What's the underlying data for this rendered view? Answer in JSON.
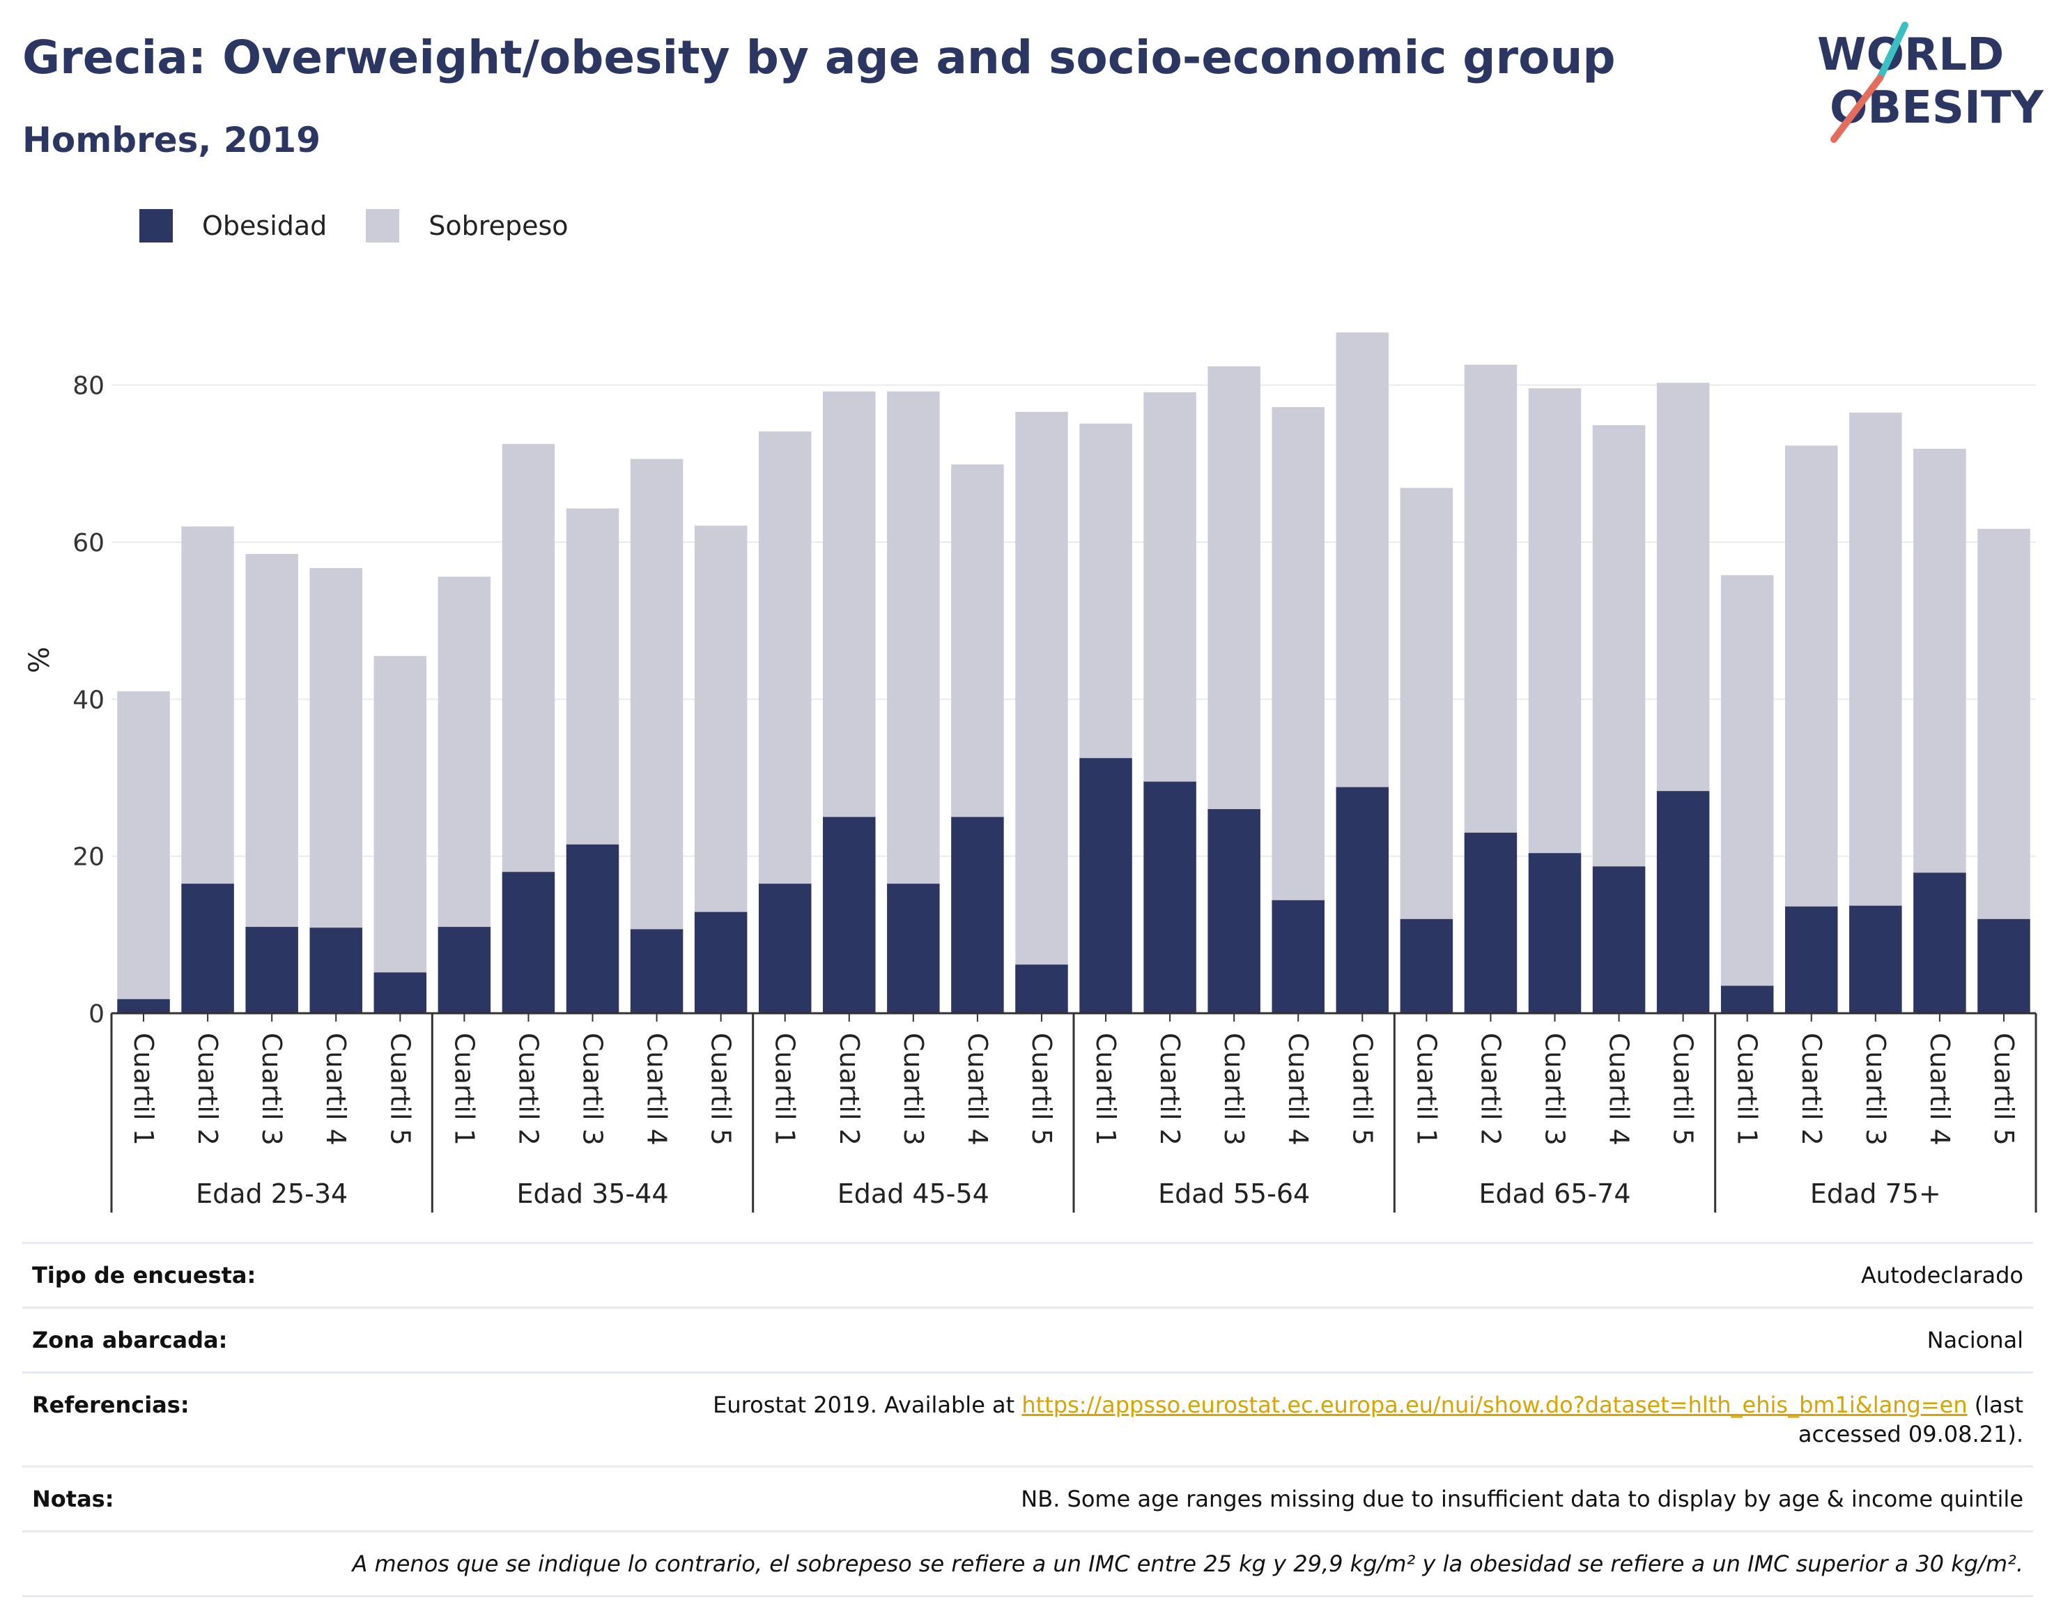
{
  "header": {
    "title": "Grecia: Overweight/obesity by age and socio-economic group",
    "subtitle": "Hombres, 2019"
  },
  "logo": {
    "line1": "WORLD",
    "line2": "OBESITY",
    "icon": "world-obesity-logo"
  },
  "colors": {
    "obesidad": "#2b3662",
    "sobrepeso": "#cbccd8",
    "title": "#2b3662",
    "link": "#d9a400"
  },
  "chart_data": {
    "type": "bar",
    "stacked": true,
    "title": "Grecia: Overweight/obesity by age and socio-economic group",
    "subtitle": "Hombres, 2019",
    "xlabel": "",
    "ylabel": "%",
    "ylim": [
      0,
      90
    ],
    "yticks": [
      0,
      20,
      40,
      60,
      80
    ],
    "grid": true,
    "legend_position": "top-left",
    "groups": [
      "Edad 25-34",
      "Edad 35-44",
      "Edad 45-54",
      "Edad 55-64",
      "Edad 65-74",
      "Edad 75+"
    ],
    "categories": [
      "Cuartil 1",
      "Cuartil 2",
      "Cuartil 3",
      "Cuartil 4",
      "Cuartil 5"
    ],
    "series": [
      {
        "name": "Obesidad",
        "values": [
          [
            1.8,
            16.5,
            11.0,
            10.9,
            5.2
          ],
          [
            11.0,
            18.0,
            21.5,
            10.7,
            12.9
          ],
          [
            16.5,
            25.0,
            16.5,
            25.0,
            6.2
          ],
          [
            32.5,
            29.5,
            26.0,
            14.4,
            28.8
          ],
          [
            12.0,
            23.0,
            20.4,
            18.7,
            28.3
          ],
          [
            3.5,
            13.6,
            13.7,
            17.9,
            12.0
          ]
        ]
      },
      {
        "name": "Sobrepeso",
        "values": [
          [
            39.2,
            45.5,
            47.5,
            45.8,
            40.3
          ],
          [
            44.6,
            54.5,
            42.8,
            59.9,
            49.2
          ],
          [
            57.6,
            54.2,
            62.7,
            44.9,
            70.4
          ],
          [
            42.6,
            49.6,
            56.4,
            62.8,
            57.9
          ],
          [
            54.9,
            59.6,
            59.2,
            56.2,
            52.0
          ],
          [
            52.3,
            58.7,
            62.8,
            54.0,
            49.7
          ]
        ]
      }
    ]
  },
  "info_table": {
    "survey_label": "Tipo de encuesta:",
    "survey_value": "Autodeclarado",
    "area_label": "Zona abarcada:",
    "area_value": "Nacional",
    "ref_label": "Referencias:",
    "ref_prefix": "Eurostat 2019. Available at ",
    "ref_link": "https://appsso.eurostat.ec.europa.eu/nui/show.do?dataset=hlth_ehis_bm1i&lang=en",
    "ref_suffix": " (last accessed 09.08.21).",
    "notes_label": "Notas:",
    "notes_value": "NB. Some age ranges missing due to insufficient data to display by age & income quintile",
    "footnote": "A menos que se indique lo contrario, el sobrepeso se refiere a un IMC entre 25 kg y 29,9 kg/m² y la obesidad se refiere a un IMC superior a 30 kg/m²."
  }
}
